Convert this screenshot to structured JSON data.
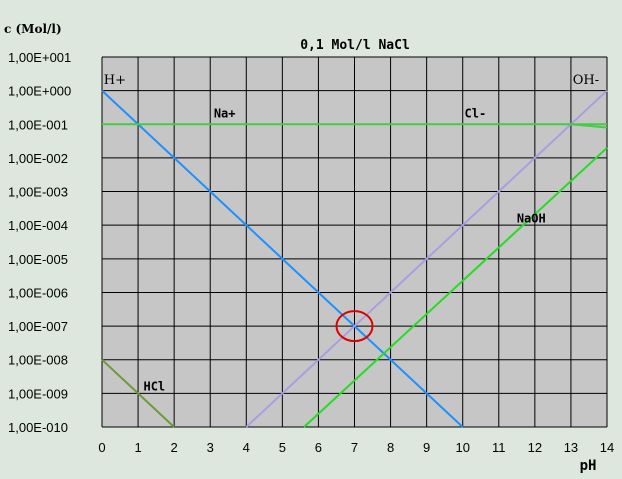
{
  "chart_data": {
    "type": "line",
    "title": "0,1 Mol/l NaCl",
    "ylabel": "c (Mol/l)",
    "xlabel": "pH",
    "xlim": [
      0,
      14
    ],
    "ylog_exponent_range": [
      -10,
      1
    ],
    "yscale": "log",
    "grid": true,
    "x_ticks": [
      "0",
      "1",
      "2",
      "3",
      "4",
      "5",
      "6",
      "7",
      "8",
      "9",
      "10",
      "11",
      "12",
      "13",
      "14"
    ],
    "y_ticks": [
      "1,00E+001",
      "1,00E+000",
      "1,00E-001",
      "1,00E-002",
      "1,00E-003",
      "1,00E-004",
      "1,00E-005",
      "1,00E-006",
      "1,00E-007",
      "1,00E-008",
      "1,00E-009",
      "1,00E-010"
    ],
    "series": [
      {
        "name": "H+",
        "color": "#1e90ff",
        "x": [
          0,
          10
        ],
        "y": [
          1,
          1e-10
        ]
      },
      {
        "name": "OH-",
        "color": "#a89ee0",
        "x": [
          4,
          14
        ],
        "y": [
          1e-10,
          1
        ]
      },
      {
        "name": "Na+",
        "color": "#44cc44",
        "x": [
          0,
          14
        ],
        "y": [
          0.1,
          0.1
        ]
      },
      {
        "name": "Cl-",
        "color": "#44cc44",
        "x": [
          13,
          14
        ],
        "y": [
          0.1,
          0.08
        ]
      },
      {
        "name": "NaOH",
        "color": "#22dd22",
        "x": [
          5.6,
          14
        ],
        "y": [
          1e-10,
          0.02
        ]
      },
      {
        "name": "HCl",
        "color": "#6b9b3a",
        "x": [
          0,
          2
        ],
        "y": [
          1e-08,
          1e-10
        ]
      }
    ],
    "annotations": [
      {
        "text": "H+",
        "x": 0.05,
        "y": 1.6
      },
      {
        "text": "OH-",
        "x": 13.05,
        "y": 1.6
      },
      {
        "text": "Na+",
        "x": 3.1,
        "y": 0.16
      },
      {
        "text": "Cl-",
        "x": 10.05,
        "y": 0.16
      },
      {
        "text": "NaOH",
        "x": 11.5,
        "y": 0.00012
      },
      {
        "text": "HCl",
        "x": 1.15,
        "y": 1.2e-09
      }
    ],
    "highlight": {
      "shape": "circle",
      "x": 7,
      "y": 1e-07,
      "color": "#dd0000"
    }
  },
  "colors": {
    "background": "#dde7dd",
    "plot_area": "#c6c6c6",
    "grid": "#000000"
  }
}
